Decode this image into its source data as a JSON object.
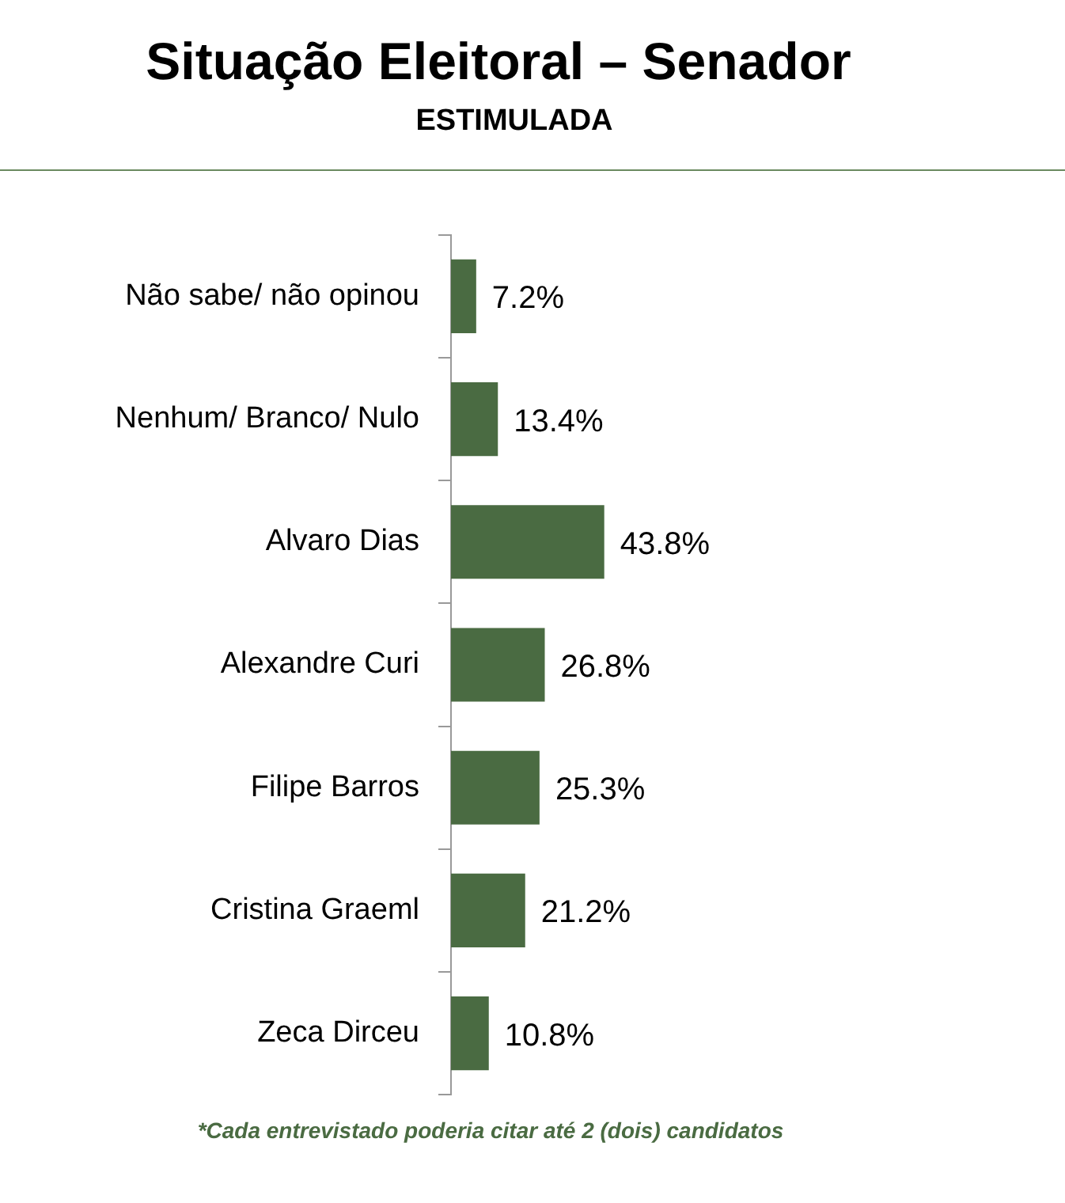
{
  "chart_data": {
    "type": "bar",
    "orientation": "horizontal",
    "title": "Situação Eleitoral – Senador",
    "subtitle": "ESTIMULADA",
    "categories": [
      "Não sabe/ não opinou",
      "Nenhum/ Branco/ Nulo",
      "Alvaro Dias",
      "Alexandre Curi",
      "Filipe Barros",
      "Cristina Graeml",
      "Zeca Dirceu"
    ],
    "values": [
      7.2,
      13.4,
      43.8,
      26.8,
      25.3,
      21.2,
      10.8
    ],
    "value_labels": [
      "7.2%",
      "13.4%",
      "43.8%",
      "26.8%",
      "25.3%",
      "21.2%",
      "10.8%"
    ],
    "color": "#4a6b42",
    "annotations": [
      "*Cada entrevistado poderia citar até 2 (dois) candidatos"
    ]
  }
}
